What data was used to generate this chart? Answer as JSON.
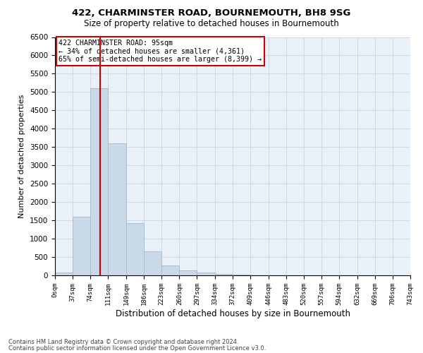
{
  "title_line1": "422, CHARMINSTER ROAD, BOURNEMOUTH, BH8 9SG",
  "title_line2": "Size of property relative to detached houses in Bournemouth",
  "xlabel": "Distribution of detached houses by size in Bournemouth",
  "ylabel": "Number of detached properties",
  "footnote1": "Contains HM Land Registry data © Crown copyright and database right 2024.",
  "footnote2": "Contains public sector information licensed under the Open Government Licence v3.0.",
  "annotation_line1": "422 CHARMINSTER ROAD: 95sqm",
  "annotation_line2": "← 34% of detached houses are smaller (4,361)",
  "annotation_line3": "65% of semi-detached houses are larger (8,399) →",
  "red_line_x": 95,
  "bar_color": "#c9d9e8",
  "bar_edge_color": "#a0b8cc",
  "grid_color": "#d0d8e8",
  "background_color": "#eaf0f8",
  "bin_edges": [
    0,
    37,
    74,
    111,
    149,
    186,
    223,
    260,
    297,
    334,
    372,
    409,
    446,
    483,
    520,
    557,
    594,
    632,
    669,
    706,
    743
  ],
  "bin_labels": [
    "0sqm",
    "37sqm",
    "74sqm",
    "111sqm",
    "149sqm",
    "186sqm",
    "223sqm",
    "260sqm",
    "297sqm",
    "334sqm",
    "372sqm",
    "409sqm",
    "446sqm",
    "483sqm",
    "520sqm",
    "557sqm",
    "594sqm",
    "632sqm",
    "669sqm",
    "706sqm",
    "743sqm"
  ],
  "bar_heights": [
    80,
    1600,
    5100,
    3600,
    1420,
    650,
    270,
    130,
    80,
    30,
    10,
    5,
    3,
    2,
    1,
    0,
    0,
    0,
    0,
    0
  ],
  "ylim": [
    0,
    6500
  ],
  "yticks": [
    0,
    500,
    1000,
    1500,
    2000,
    2500,
    3000,
    3500,
    4000,
    4500,
    5000,
    5500,
    6000,
    6500
  ],
  "red_line_color": "#cc0000",
  "annotation_box_edge_color": "#cc0000",
  "annotation_box_face_color": "#ffffff"
}
